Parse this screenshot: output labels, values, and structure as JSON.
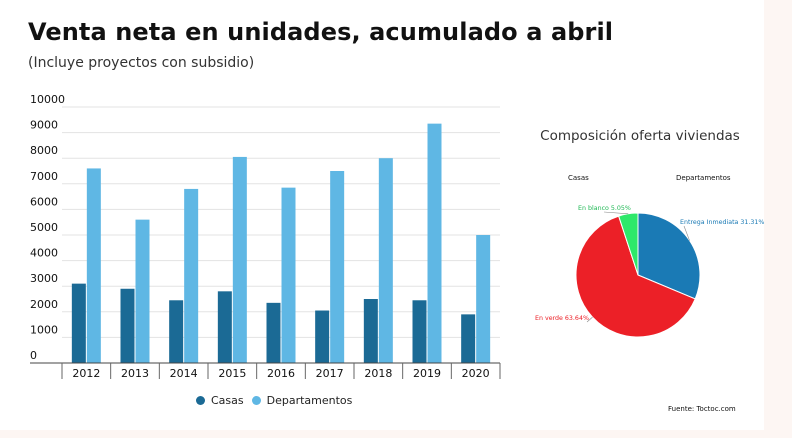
{
  "title": "Venta neta en unidades, acumulado a abril",
  "subtitle": "(Incluye proyectos con subsidio)",
  "source": "Fuente: Toctoc.com",
  "chart_data": [
    {
      "type": "bar",
      "title": "",
      "xlabel": "",
      "ylabel": "",
      "categories": [
        "2012",
        "2013",
        "2014",
        "2015",
        "2016",
        "2017",
        "2018",
        "2019",
        "2020"
      ],
      "series": [
        {
          "name": "Casas",
          "color": "#1b6a95",
          "values": [
            3100,
            2900,
            2450,
            2800,
            2350,
            2050,
            2500,
            2450,
            1900
          ]
        },
        {
          "name": "Departamentos",
          "color": "#5fb7e4",
          "values": [
            7600,
            5600,
            6800,
            8050,
            6850,
            7500,
            8000,
            9350,
            5000
          ]
        }
      ],
      "ylim": [
        0,
        10000
      ],
      "yticks": [
        0,
        1000,
        2000,
        3000,
        4000,
        5000,
        6000,
        7000,
        8000,
        9000,
        10000
      ],
      "grid": true,
      "legend": "bottom"
    },
    {
      "type": "pie",
      "title": "Composición oferta viviendas",
      "group_labels": [
        "Casas",
        "Departamentos"
      ],
      "slices": [
        {
          "label": "Entrega Inmediata 31.31%",
          "value": 31.31,
          "color": "#1a7ab5"
        },
        {
          "label": "En verde 63.64%",
          "value": 63.64,
          "color": "#ec2027"
        },
        {
          "label": "En blanco 5.05%",
          "value": 5.05,
          "color": "#2ee86a"
        }
      ]
    }
  ]
}
